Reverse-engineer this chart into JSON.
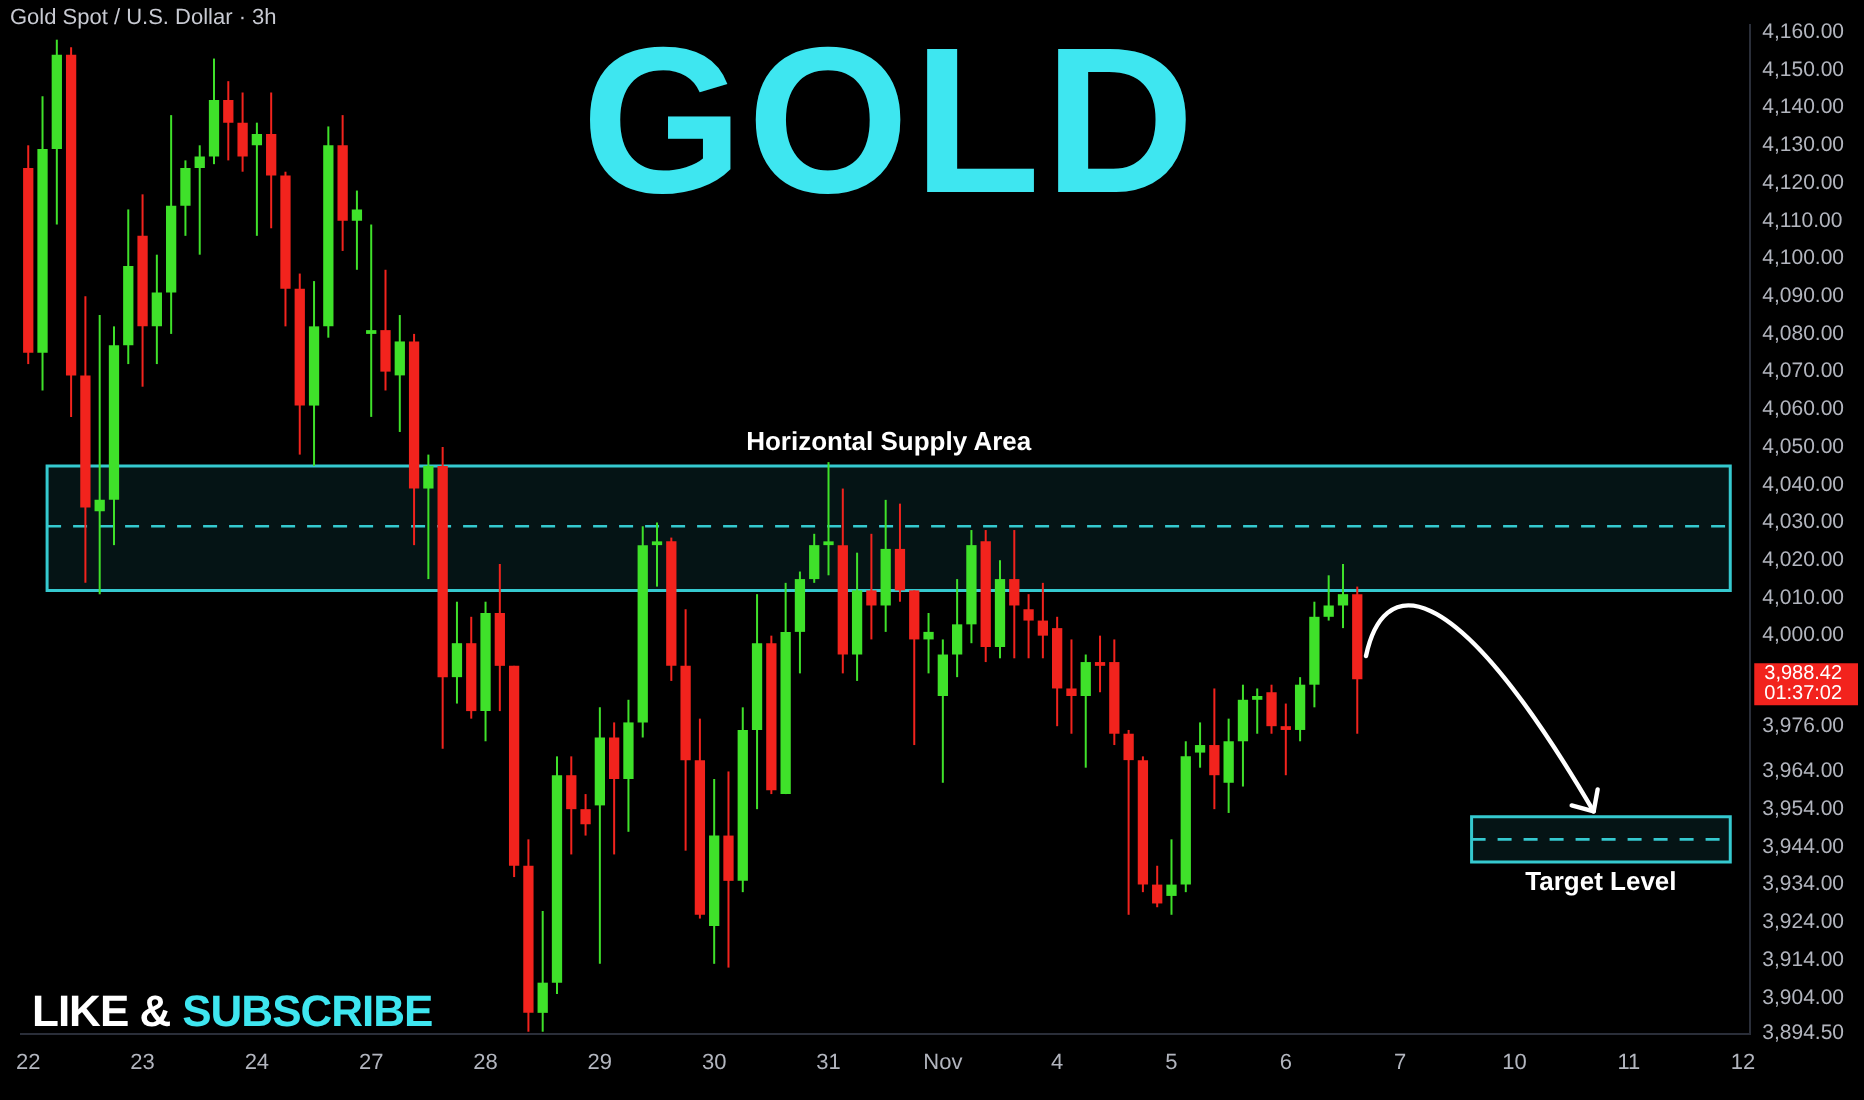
{
  "chart_data": {
    "type": "candlestick",
    "title": "GOLD",
    "subtitle": "Gold Spot / U.S. Dollar · 3h",
    "categories": [
      "22",
      null,
      null,
      null,
      null,
      null,
      null,
      null,
      "23",
      null,
      null,
      null,
      null,
      null,
      null,
      null,
      "24",
      null,
      null,
      null,
      null,
      null,
      null,
      null,
      "27",
      null,
      null,
      null,
      null,
      null,
      null,
      null,
      "28",
      null,
      null,
      null,
      null,
      null,
      null,
      null,
      "29",
      null,
      null,
      null,
      null,
      null,
      null,
      null,
      "30",
      null,
      null,
      null,
      null,
      null,
      null,
      null,
      "31",
      null,
      null,
      null,
      null,
      null,
      null,
      null,
      "Nov",
      null,
      null,
      null,
      null,
      null,
      null,
      null,
      "4",
      null,
      null,
      null,
      null,
      null,
      null,
      null,
      "5",
      null,
      null,
      null,
      null,
      null,
      null,
      null,
      "6",
      null,
      null,
      null,
      null,
      null,
      null,
      null,
      "7",
      null,
      null,
      null,
      null,
      null,
      null,
      null,
      "10",
      null,
      null,
      null,
      null,
      null,
      null,
      null,
      "11",
      null,
      null,
      null,
      null,
      null,
      null,
      null,
      "12"
    ],
    "ohlc": [
      [
        4124,
        4130,
        4072,
        4075
      ],
      [
        4075,
        4143,
        4065,
        4129
      ],
      [
        4129,
        4158,
        4109,
        4154
      ],
      [
        4154,
        4156,
        4058,
        4069
      ],
      [
        4069,
        4090,
        4014,
        4034
      ],
      [
        4033,
        4085,
        4011,
        4036
      ],
      [
        4036,
        4082,
        4024,
        4077
      ],
      [
        4077,
        4113,
        4072,
        4098
      ],
      [
        4106,
        4117,
        4066,
        4082
      ],
      [
        4082,
        4101,
        4072,
        4091
      ],
      [
        4091,
        4138,
        4080,
        4114
      ],
      [
        4114,
        4126,
        4106,
        4124
      ],
      [
        4124,
        4130,
        4101,
        4127
      ],
      [
        4127,
        4153,
        4125,
        4142
      ],
      [
        4142,
        4147,
        4126,
        4136
      ],
      [
        4136,
        4144,
        4123,
        4127
      ],
      [
        4130,
        4136,
        4106,
        4133
      ],
      [
        4133,
        4144,
        4108,
        4122
      ],
      [
        4122,
        4123,
        4082,
        4092
      ],
      [
        4092,
        4096,
        4048,
        4061
      ],
      [
        4061,
        4094,
        4045,
        4082
      ],
      [
        4082,
        4135,
        4079,
        4130
      ],
      [
        4130,
        4138,
        4102,
        4110
      ],
      [
        4110,
        4118,
        4097,
        4113
      ],
      [
        4080,
        4109,
        4058,
        4081
      ],
      [
        4081,
        4097,
        4065,
        4070
      ],
      [
        4069,
        4085,
        4054,
        4078
      ],
      [
        4078,
        4080,
        4024,
        4039
      ],
      [
        4039,
        4048,
        4015,
        4045
      ],
      [
        4045,
        4050,
        3970,
        3989
      ],
      [
        3989,
        4009,
        3982,
        3998
      ],
      [
        3998,
        4005,
        3978,
        3980
      ],
      [
        3980,
        4009,
        3972,
        4006
      ],
      [
        4006,
        4019,
        3980,
        3992
      ],
      [
        3992,
        3992,
        3936,
        3939
      ],
      [
        3939,
        3946,
        3895,
        3900
      ],
      [
        3900,
        3927,
        3895,
        3908
      ],
      [
        3908,
        3968,
        3905,
        3963
      ],
      [
        3963,
        3968,
        3942,
        3954
      ],
      [
        3954,
        3958,
        3947,
        3950
      ],
      [
        3955,
        3981,
        3913,
        3973
      ],
      [
        3973,
        3977,
        3942,
        3962
      ],
      [
        3962,
        3983,
        3948,
        3977
      ],
      [
        3977,
        4029,
        3973,
        4024
      ],
      [
        4024,
        4030,
        4013,
        4025
      ],
      [
        4025,
        4026,
        3988,
        3992
      ],
      [
        3992,
        4007,
        3943,
        3967
      ],
      [
        3967,
        3978,
        3925,
        3926
      ],
      [
        3923,
        3962,
        3913,
        3947
      ],
      [
        3947,
        3964,
        3912,
        3935
      ],
      [
        3935,
        3981,
        3932,
        3975
      ],
      [
        3975,
        4011,
        3954,
        3998
      ],
      [
        3998,
        4000,
        3958,
        3959
      ],
      [
        3958,
        4014,
        3958,
        4001
      ],
      [
        4001,
        4017,
        3990,
        4015
      ],
      [
        4015,
        4027,
        4014,
        4024
      ],
      [
        4024,
        4046,
        4016,
        4025
      ],
      [
        4024,
        4039,
        3990,
        3995
      ],
      [
        3995,
        4022,
        3988,
        4012
      ],
      [
        4012,
        4027,
        3999,
        4008
      ],
      [
        4008,
        4036,
        4001,
        4023
      ],
      [
        4023,
        4035,
        4009,
        4012
      ],
      [
        4012,
        4012,
        3971,
        3999
      ],
      [
        3999,
        4006,
        3990,
        4001
      ],
      [
        3984,
        3999,
        3961,
        3995
      ],
      [
        3995,
        4015,
        3989,
        4003
      ],
      [
        4003,
        4028,
        3998,
        4024
      ],
      [
        4025,
        4028,
        3993,
        3997
      ],
      [
        3997,
        4020,
        3994,
        4015
      ],
      [
        4015,
        4028,
        3994,
        4008
      ],
      [
        4007,
        4011,
        3994,
        4004
      ],
      [
        4004,
        4014,
        3994,
        4000
      ],
      [
        4002,
        4005,
        3976,
        3986
      ],
      [
        3986,
        3999,
        3974,
        3984
      ],
      [
        3984,
        3995,
        3965,
        3993
      ],
      [
        3993,
        4000,
        3985,
        3992
      ],
      [
        3993,
        3999,
        3971,
        3974
      ],
      [
        3974,
        3975,
        3926,
        3967
      ],
      [
        3967,
        3968,
        3932,
        3934
      ],
      [
        3934,
        3939,
        3928,
        3929
      ],
      [
        3931,
        3946,
        3926,
        3934
      ],
      [
        3934,
        3972,
        3932,
        3968
      ],
      [
        3969,
        3977,
        3965,
        3971
      ],
      [
        3971,
        3986,
        3954,
        3963
      ],
      [
        3961,
        3978,
        3953,
        3972
      ],
      [
        3972,
        3987,
        3960,
        3983
      ],
      [
        3983,
        3986,
        3974,
        3984
      ],
      [
        3985,
        3987,
        3974,
        3976
      ],
      [
        3976,
        3982,
        3963,
        3975
      ],
      [
        3975,
        3989,
        3972,
        3987
      ],
      [
        3987,
        4009,
        3981,
        4005
      ],
      [
        4005,
        4016,
        4004,
        4008
      ],
      [
        4008,
        4019,
        4002,
        4011
      ],
      [
        4011,
        4013,
        3974,
        3988.42
      ],
      null,
      null,
      null,
      null,
      null,
      null,
      null,
      null,
      null,
      null,
      null,
      null,
      null,
      null,
      null,
      null,
      null,
      null,
      null,
      null,
      null,
      null,
      null,
      null,
      null,
      null,
      null
    ],
    "ylim": [
      3894.5,
      4162
    ],
    "yticks": [
      {
        "value": 4160,
        "label": "4,160.00"
      },
      {
        "value": 4150,
        "label": "4,150.00"
      },
      {
        "value": 4140,
        "label": "4,140.00"
      },
      {
        "value": 4130,
        "label": "4,130.00"
      },
      {
        "value": 4120,
        "label": "4,120.00"
      },
      {
        "value": 4110,
        "label": "4,110.00"
      },
      {
        "value": 4100,
        "label": "4,100.00"
      },
      {
        "value": 4090,
        "label": "4,090.00"
      },
      {
        "value": 4080,
        "label": "4,080.00"
      },
      {
        "value": 4070,
        "label": "4,070.00"
      },
      {
        "value": 4060,
        "label": "4,060.00"
      },
      {
        "value": 4050,
        "label": "4,050.00"
      },
      {
        "value": 4040,
        "label": "4,040.00"
      },
      {
        "value": 4030,
        "label": "4,030.00"
      },
      {
        "value": 4020,
        "label": "4,020.00"
      },
      {
        "value": 4010,
        "label": "4,010.00"
      },
      {
        "value": 4000,
        "label": "4,000.00"
      },
      {
        "value": 3976,
        "label": "3,976.00"
      },
      {
        "value": 3964,
        "label": "3,964.00"
      },
      {
        "value": 3954,
        "label": "3,954.00"
      },
      {
        "value": 3944,
        "label": "3,944.00"
      },
      {
        "value": 3934,
        "label": "3,934.00"
      },
      {
        "value": 3924,
        "label": "3,924.00"
      },
      {
        "value": 3914,
        "label": "3,914.00"
      },
      {
        "value": 3904,
        "label": "3,904.00"
      },
      {
        "value": 3894.5,
        "label": "3,894.50"
      }
    ],
    "bands": [
      {
        "axis": "y",
        "from": 4012,
        "to": 4045,
        "label": "Horizontal Supply Area",
        "color": "#35c9cf"
      },
      {
        "axis": "y",
        "from": 3940,
        "to": 3952,
        "label": "Target Level",
        "color": "#35c9cf"
      }
    ],
    "ref_lines": [
      {
        "axis": "y",
        "value": 4029,
        "color": "#35c9cf",
        "line_style": "dashed"
      },
      {
        "axis": "y",
        "value": 3946,
        "color": "#35c9cf",
        "line_style": "dashed"
      }
    ],
    "annotations": [
      "3,988.42",
      "01:37:02",
      "LIKE &",
      "SUBSCRIBE"
    ]
  }
}
